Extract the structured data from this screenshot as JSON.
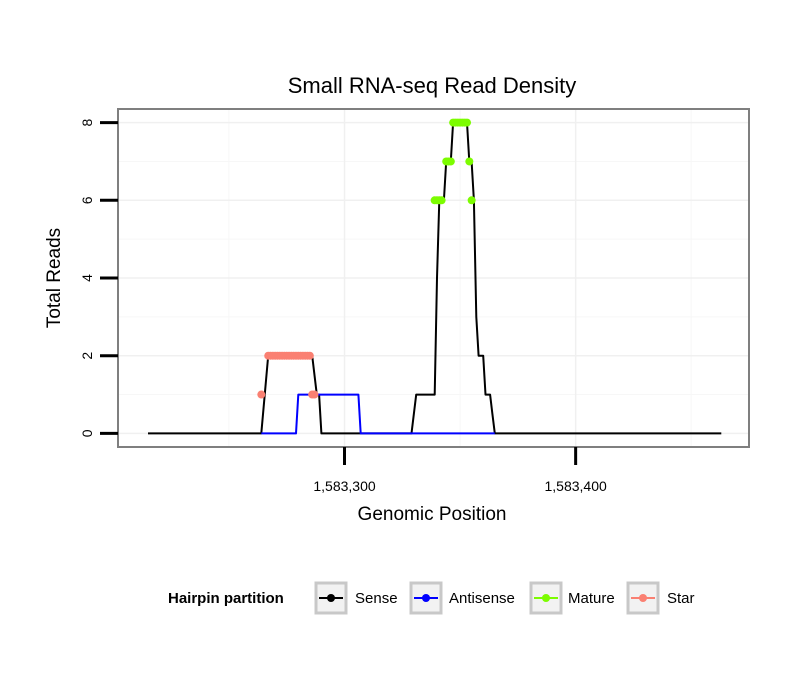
{
  "chart_data": {
    "type": "line",
    "title": "Small RNA-seq Read Density",
    "xlabel": "Genomic Position",
    "ylabel": "Total Reads",
    "xlim": [
      1583202,
      1583475
    ],
    "ylim": [
      -0.35,
      8.35
    ],
    "x_ticks": [
      {
        "value": 1583300,
        "label": "1,583,300"
      },
      {
        "value": 1583400,
        "label": "1,583,400"
      }
    ],
    "y_ticks": [
      {
        "value": 0,
        "label": "0"
      },
      {
        "value": 2,
        "label": "2"
      },
      {
        "value": 4,
        "label": "4"
      },
      {
        "value": 6,
        "label": "6"
      },
      {
        "value": 8,
        "label": "8"
      }
    ],
    "grid": true,
    "legend": {
      "title": "Hairpin partition",
      "position": "bottom",
      "entries": [
        {
          "name": "Sense",
          "color": "#000000"
        },
        {
          "name": "Antisense",
          "color": "#0000ff"
        },
        {
          "name": "Mature",
          "color": "#7cfc00"
        },
        {
          "name": "Star",
          "color": "#fa8072"
        }
      ]
    },
    "series": [
      {
        "name": "Sense",
        "kind": "line",
        "color": "#000000",
        "x": [
          1583215,
          1583264,
          1583267,
          1583286,
          1583288,
          1583289,
          1583290,
          1583329,
          1583331,
          1583339,
          1583340,
          1583341,
          1583342,
          1583343,
          1583344,
          1583345,
          1583346,
          1583347,
          1583348,
          1583353,
          1583354,
          1583355,
          1583356,
          1583357,
          1583358,
          1583359,
          1583360,
          1583361,
          1583362,
          1583363,
          1583364,
          1583365,
          1583366,
          1583463
        ],
        "values": [
          0,
          0,
          2,
          2,
          1,
          1,
          0,
          0,
          1,
          1,
          4,
          6,
          6,
          6,
          7,
          7,
          7,
          8,
          8,
          8,
          7,
          7,
          6,
          3,
          2,
          2,
          2,
          1,
          1,
          1,
          0.5,
          0,
          0,
          0
        ]
      },
      {
        "name": "Antisense",
        "kind": "line",
        "color": "#0000ff",
        "x": [
          1583264,
          1583279,
          1583280,
          1583306,
          1583307,
          1583365
        ],
        "values": [
          0,
          0,
          1,
          1,
          0,
          0
        ]
      },
      {
        "name": "Mature",
        "kind": "points",
        "color": "#7cfc00",
        "x": [
          1583339,
          1583340,
          1583341,
          1583342,
          1583344,
          1583345,
          1583346,
          1583347,
          1583348,
          1583349,
          1583350,
          1583351,
          1583352,
          1583353,
          1583354,
          1583355
        ],
        "values": [
          6,
          6,
          6,
          6,
          7,
          7,
          7,
          8,
          8,
          8,
          8,
          8,
          8,
          8,
          7,
          6
        ]
      },
      {
        "name": "Star",
        "kind": "points",
        "color": "#fa8072",
        "x": [
          1583264,
          1583267,
          1583268,
          1583269,
          1583270,
          1583271,
          1583272,
          1583273,
          1583274,
          1583275,
          1583276,
          1583277,
          1583278,
          1583279,
          1583280,
          1583281,
          1583282,
          1583283,
          1583284,
          1583285,
          1583286,
          1583287
        ],
        "values": [
          1,
          2,
          2,
          2,
          2,
          2,
          2,
          2,
          2,
          2,
          2,
          2,
          2,
          2,
          2,
          2,
          2,
          2,
          2,
          2,
          1,
          1
        ]
      }
    ]
  }
}
